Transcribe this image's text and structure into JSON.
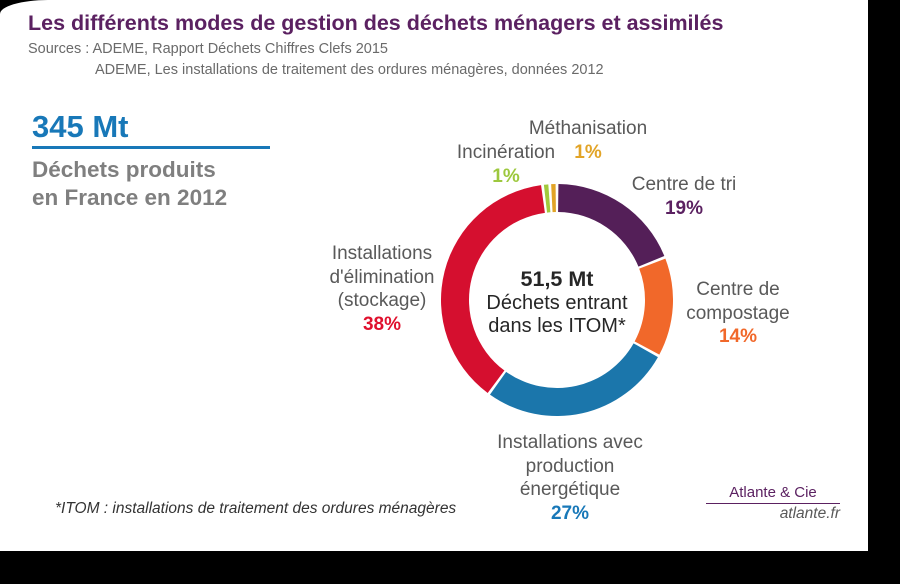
{
  "title": "Les différents modes de gestion des déchets ménagers et assimilés",
  "sources": {
    "line1": "Sources : ADEME, Rapport Déchets Chiffres Clefs 2015",
    "line2": "ADEME, Les installations de traitement des ordures ménagères, données 2012"
  },
  "left_panel": {
    "total_value": "345 Mt",
    "subtitle_line1": "Déchets produits",
    "subtitle_line2": "en France en 2012"
  },
  "footnote": "*ITOM : installations de traitement des ordures ménagères",
  "branding": {
    "company": "Atlante & Cie",
    "website": "atlante.fr"
  },
  "colors": {
    "accent_purple": "#5B2161",
    "accent_blue": "#1878B8",
    "label_gray": "#595959"
  },
  "chart_data": {
    "type": "pie",
    "donut": true,
    "title": "Déchets entrant dans les ITOM",
    "center_label": [
      "51,5 Mt",
      "Déchets entrant",
      "dans les ITOM*"
    ],
    "total_center": "51,5 Mt",
    "unit": "%",
    "start_angle": -7.2,
    "legend_position": "around",
    "slices": [
      {
        "id": "incineration",
        "name": "Incinération",
        "value_pct": 1,
        "color": "#A1C93C"
      },
      {
        "id": "methanisation",
        "name": "Méthanisation",
        "value_pct": 1,
        "color": "#E2A427"
      },
      {
        "id": "centre-tri",
        "name": "Centre de tri",
        "value_pct": 19,
        "color": "#541F58"
      },
      {
        "id": "compostage",
        "name": "Centre de compostage",
        "value_pct": 14,
        "color": "#F1682A"
      },
      {
        "id": "energie",
        "name": "Installations avec production énergétique",
        "value_pct": 27,
        "color": "#1B76AB"
      },
      {
        "id": "stockage",
        "name": "Installations d'élimination (stockage)",
        "value_pct": 38,
        "color": "#D50F2F"
      }
    ],
    "callouts": {
      "methanisation": {
        "lines": [
          "Méthanisation"
        ],
        "pct": "1%",
        "pct_color": "#E2A427"
      },
      "incineration": {
        "lines": [
          "Incinération"
        ],
        "pct": "1%",
        "pct_color": "#9DC83E"
      },
      "centre_tri": {
        "lines": [
          "Centre de tri"
        ],
        "pct": "19%",
        "pct_color": "#5B2161"
      },
      "compostage": {
        "lines": [
          "Centre de",
          "compostage"
        ],
        "pct": "14%",
        "pct_color": "#F1682A"
      },
      "energie": {
        "lines": [
          "Installations avec",
          "production",
          "énergétique"
        ],
        "pct": "27%",
        "pct_color": "#1878B8"
      },
      "stockage": {
        "lines": [
          "Installations",
          "d'élimination",
          "(stockage)"
        ],
        "pct": "38%",
        "pct_color": "#E0112E"
      }
    }
  }
}
